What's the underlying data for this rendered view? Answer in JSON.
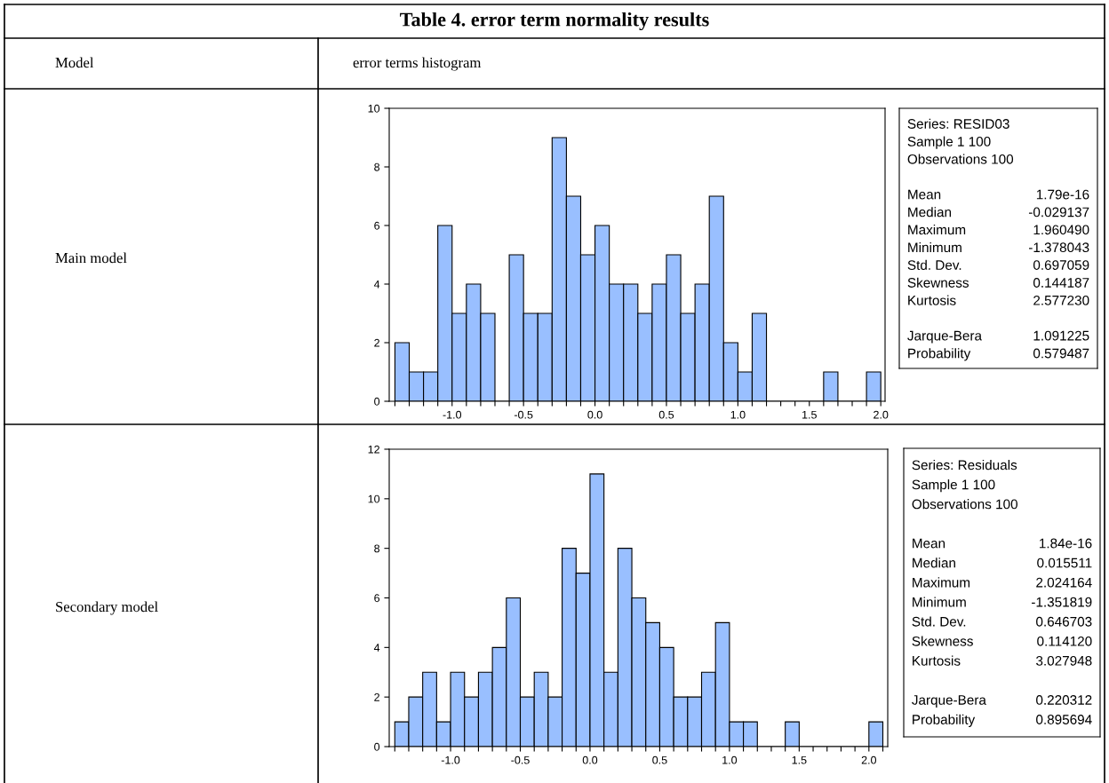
{
  "chart_data": [
    {
      "type": "other",
      "title": "Table 4. error term normality results",
      "annotations": [
        "Model",
        "error terms histogram",
        "Main model",
        "Secondary model"
      ]
    },
    {
      "type": "histogram",
      "color": "#99bfff",
      "grid": false,
      "bins": [
        -1.4,
        -1.3,
        -1.2,
        -1.1,
        -1.0,
        -0.9,
        -0.8,
        -0.7,
        -0.6,
        -0.5,
        -0.4,
        -0.3,
        -0.2,
        -0.1,
        0.0,
        0.1,
        0.2,
        0.3,
        0.4,
        0.5,
        0.6,
        0.7,
        0.8,
        0.9,
        1.0,
        1.1,
        1.2,
        1.3,
        1.4,
        1.5,
        1.6,
        1.7,
        1.8,
        1.9,
        2.0
      ],
      "values": [
        2,
        1,
        1,
        6,
        3,
        4,
        3,
        0,
        5,
        3,
        3,
        9,
        7,
        5,
        6,
        4,
        4,
        3,
        4,
        5,
        3,
        4,
        7,
        2,
        1,
        3,
        0,
        0,
        0,
        0,
        1,
        0,
        0,
        1
      ],
      "xlim": [
        -1.44,
        2.03
      ],
      "ylim": [
        0,
        10
      ],
      "yticks": [
        0,
        2,
        4,
        6,
        8,
        10
      ],
      "xticks": [
        {
          "value": -1.4,
          "label": null
        },
        {
          "value": -1.3,
          "label": null
        },
        {
          "value": -1.2,
          "label": null
        },
        {
          "value": -1.1,
          "label": null
        },
        {
          "value": -1.0,
          "label": "-1.0"
        },
        {
          "value": -0.9,
          "label": null
        },
        {
          "value": -0.8,
          "label": null
        },
        {
          "value": -0.7,
          "label": null
        },
        {
          "value": -0.6,
          "label": null
        },
        {
          "value": -0.5,
          "label": "-0.5"
        },
        {
          "value": -0.4,
          "label": null
        },
        {
          "value": -0.3,
          "label": null
        },
        {
          "value": -0.2,
          "label": null
        },
        {
          "value": -0.1,
          "label": null
        },
        {
          "value": 0.0,
          "label": "0.0"
        },
        {
          "value": 0.1,
          "label": null
        },
        {
          "value": 0.2,
          "label": null
        },
        {
          "value": 0.3,
          "label": null
        },
        {
          "value": 0.4,
          "label": null
        },
        {
          "value": 0.5,
          "label": "0.5"
        },
        {
          "value": 0.6,
          "label": null
        },
        {
          "value": 0.7,
          "label": null
        },
        {
          "value": 0.8,
          "label": null
        },
        {
          "value": 0.9,
          "label": null
        },
        {
          "value": 1.0,
          "label": "1.0"
        },
        {
          "value": 1.1,
          "label": null
        },
        {
          "value": 1.2,
          "label": null
        },
        {
          "value": 1.3,
          "label": null
        },
        {
          "value": 1.4,
          "label": null
        },
        {
          "value": 1.5,
          "label": "1.5"
        },
        {
          "value": 1.6,
          "label": null
        },
        {
          "value": 1.7,
          "label": null
        },
        {
          "value": 1.8,
          "label": null
        },
        {
          "value": 1.9,
          "label": null
        },
        {
          "value": 2.0,
          "label": "2.0"
        }
      ]
    },
    {
      "type": "other",
      "annotations": [
        "Series: RESID03",
        "Sample 1 100",
        "Observations 100"
      ],
      "categories": [
        "Mean",
        "Median",
        "Maximum",
        "Minimum",
        "Std. Dev.",
        "Skewness",
        "Kurtosis",
        null,
        "Jarque-Bera",
        "Probability"
      ],
      "value_labels": [
        "1.79e-16",
        "-0.029137",
        "1.960490",
        "-1.378043",
        "0.697059",
        "0.144187",
        "2.577230",
        null,
        "1.091225",
        "0.579487"
      ]
    },
    {
      "type": "histogram",
      "color": "#99bfff",
      "grid": false,
      "bins": [
        -1.4,
        -1.3,
        -1.2,
        -1.1,
        -1.0,
        -0.9,
        -0.8,
        -0.7,
        -0.6,
        -0.5,
        -0.4,
        -0.3,
        -0.2,
        -0.1,
        0.0,
        0.1,
        0.2,
        0.3,
        0.4,
        0.5,
        0.6,
        0.7,
        0.8,
        0.9,
        1.0,
        1.1,
        1.2,
        1.3,
        1.4,
        1.5,
        1.6,
        1.7,
        1.8,
        1.9,
        2.0,
        2.1
      ],
      "values": [
        1,
        2,
        3,
        1,
        3,
        2,
        3,
        4,
        6,
        2,
        3,
        2,
        8,
        7,
        11,
        3,
        8,
        6,
        5,
        4,
        2,
        2,
        3,
        5,
        1,
        1,
        0,
        0,
        1,
        0,
        0,
        0,
        0,
        0,
        1
      ],
      "xlim": [
        -1.44,
        2.135
      ],
      "ylim": [
        0,
        12
      ],
      "yticks": [
        0,
        2,
        4,
        6,
        8,
        10,
        12
      ],
      "xticks": [
        {
          "value": -1.4,
          "label": null
        },
        {
          "value": -1.3,
          "label": null
        },
        {
          "value": -1.2,
          "label": null
        },
        {
          "value": -1.1,
          "label": null
        },
        {
          "value": -1.0,
          "label": "-1.0"
        },
        {
          "value": -0.9,
          "label": null
        },
        {
          "value": -0.8,
          "label": null
        },
        {
          "value": -0.7,
          "label": null
        },
        {
          "value": -0.6,
          "label": null
        },
        {
          "value": -0.5,
          "label": "-0.5"
        },
        {
          "value": -0.4,
          "label": null
        },
        {
          "value": -0.3,
          "label": null
        },
        {
          "value": -0.2,
          "label": null
        },
        {
          "value": -0.1,
          "label": null
        },
        {
          "value": 0.0,
          "label": "0.0"
        },
        {
          "value": 0.1,
          "label": null
        },
        {
          "value": 0.2,
          "label": null
        },
        {
          "value": 0.3,
          "label": null
        },
        {
          "value": 0.4,
          "label": null
        },
        {
          "value": 0.5,
          "label": "0.5"
        },
        {
          "value": 0.6,
          "label": null
        },
        {
          "value": 0.7,
          "label": null
        },
        {
          "value": 0.8,
          "label": null
        },
        {
          "value": 0.9,
          "label": null
        },
        {
          "value": 1.0,
          "label": "1.0"
        },
        {
          "value": 1.1,
          "label": null
        },
        {
          "value": 1.2,
          "label": null
        },
        {
          "value": 1.3,
          "label": null
        },
        {
          "value": 1.4,
          "label": null
        },
        {
          "value": 1.5,
          "label": "1.5"
        },
        {
          "value": 1.6,
          "label": null
        },
        {
          "value": 1.7,
          "label": null
        },
        {
          "value": 1.8,
          "label": null
        },
        {
          "value": 1.9,
          "label": null
        },
        {
          "value": 2.0,
          "label": "2.0"
        },
        {
          "value": 2.1,
          "label": null
        }
      ]
    },
    {
      "type": "other",
      "annotations": [
        "Series: Residuals",
        "Sample 1 100",
        "Observations 100"
      ],
      "categories": [
        "Mean",
        "Median",
        "Maximum",
        "Minimum",
        "Std. Dev.",
        "Skewness",
        "Kurtosis",
        null,
        "Jarque-Bera",
        "Probability"
      ],
      "value_labels": [
        "1.84e-16",
        "0.015511",
        "2.024164",
        "-1.351819",
        "0.646703",
        "0.114120",
        "3.027948",
        null,
        "0.220312",
        "0.895694"
      ]
    }
  ]
}
